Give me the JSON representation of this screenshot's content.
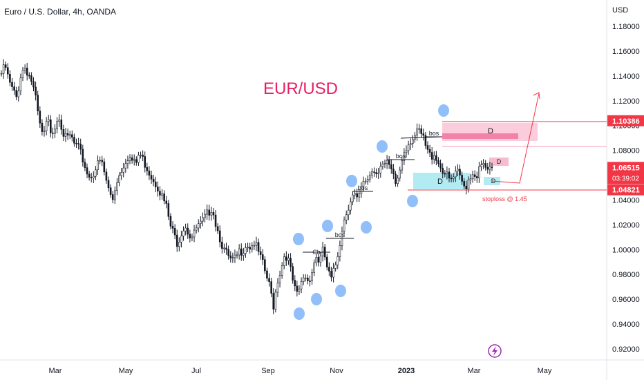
{
  "header": {
    "symbol_title": "Euro / U.S. Dollar, 4h, OANDA"
  },
  "axis": {
    "currency": "USD"
  },
  "chart_data": {
    "type": "line",
    "title": "EUR/USD",
    "ylim": [
      0.91,
      1.19
    ],
    "y_ticks": [
      "1.18000",
      "1.16000",
      "1.14000",
      "1.12000",
      "1.10000",
      "1.08000",
      "1.06000",
      "1.04000",
      "1.02000",
      "1.00000",
      "0.98000",
      "0.96000",
      "0.94000",
      "0.92000"
    ],
    "x_ticks": [
      {
        "label": "Mar",
        "bold": false
      },
      {
        "label": "May",
        "bold": false
      },
      {
        "label": "Jul",
        "bold": false
      },
      {
        "label": "Sep",
        "bold": false
      },
      {
        "label": "Nov",
        "bold": false
      },
      {
        "label": "2023",
        "bold": true
      },
      {
        "label": "Mar",
        "bold": false
      },
      {
        "label": "May",
        "bold": false
      }
    ],
    "price_tags": [
      {
        "value": "1.10386",
        "price": 1.10386,
        "color": "#f23645"
      },
      {
        "value": "1.06515",
        "price": 1.06515,
        "sub": "03:39:02",
        "color": "#f23645"
      },
      {
        "value": "1.04821",
        "price": 1.04821,
        "color": "#f23645"
      }
    ],
    "annotations": {
      "stoploss": "stoploss @ 1.45",
      "bos": "bos",
      "ch": "Ch",
      "zone_label": "D"
    },
    "colors": {
      "candles": "#131722",
      "accent": "#e91e63",
      "markers": "#90bff9",
      "supply_zone": "#f8bbd0",
      "demand_zone": "#b2ebf2",
      "line_red": "#f23645"
    },
    "series": [
      {
        "values": [
          1.142,
          1.148,
          1.135,
          1.128,
          1.122,
          1.14,
          1.148,
          1.142,
          1.135,
          1.12,
          1.1,
          1.09,
          1.105,
          1.095,
          1.1,
          1.11,
          1.095,
          1.088,
          1.092,
          1.085,
          1.082,
          1.075,
          1.065,
          1.058,
          1.062,
          1.068,
          1.072,
          1.06,
          1.048,
          1.04,
          1.055,
          1.062,
          1.07,
          1.075,
          1.072,
          1.068,
          1.078,
          1.072,
          1.066,
          1.06,
          1.055,
          1.05,
          1.042,
          1.035,
          1.02,
          1.012,
          1.005,
          1.015,
          1.02,
          1.012,
          1.01,
          1.018,
          1.02,
          1.025,
          1.03,
          1.035,
          1.02,
          1.01,
          1.0,
          0.995,
          0.99,
          0.992,
          0.998,
          1.0,
          1.005,
          1.002,
          1.006,
          0.998,
          0.99,
          0.98,
          0.97,
          0.955,
          0.975,
          0.985,
          0.998,
          0.99,
          0.975,
          0.962,
          0.97,
          0.98,
          0.975,
          0.982,
          0.995,
          0.99,
          1.0,
          0.985,
          0.975,
          0.985,
          1.0,
          1.02,
          1.03,
          1.04,
          1.045,
          1.038,
          1.05,
          1.055,
          1.06,
          1.065,
          1.062,
          1.07,
          1.068,
          1.068,
          1.06,
          1.052,
          1.065,
          1.08,
          1.085,
          1.09,
          1.092,
          1.095,
          1.09,
          1.08,
          1.075,
          1.078,
          1.07,
          1.065,
          1.06,
          1.055,
          1.058,
          1.062,
          1.055,
          1.05,
          1.058,
          1.062,
          1.06,
          1.066,
          1.068,
          1.062,
          1.065
        ]
      }
    ]
  }
}
